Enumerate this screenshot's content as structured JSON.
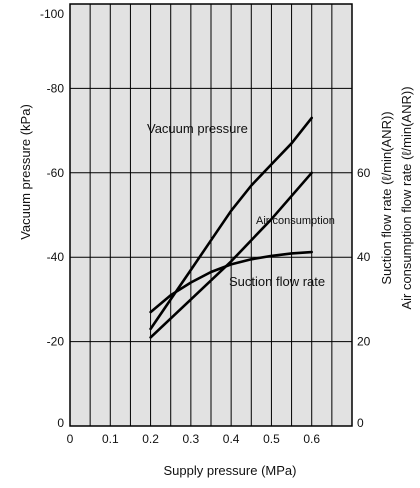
{
  "chart_data": {
    "type": "line",
    "xlabel": "Supply pressure (MPa)",
    "ylabel_left": "Vacuum pressure (kPa)",
    "ylabel_right_1": "Suction flow rate (ℓ/min(ANR))",
    "ylabel_right_2": "Air consumption flow rate (ℓ/min(ANR))",
    "xlim": [
      0,
      0.7
    ],
    "x_ticks": [
      "0",
      "0.1",
      "0.2",
      "0.3",
      "0.4",
      "0.5",
      "0.6"
    ],
    "x_tick_values": [
      0,
      0.1,
      0.2,
      0.3,
      0.4,
      0.5,
      0.6
    ],
    "ylim_left": [
      0,
      -100
    ],
    "y_left_ticks": [
      "0",
      "-20",
      "-40",
      "-60",
      "-80",
      "-100"
    ],
    "y_left_tick_values": [
      0,
      -20,
      -40,
      -60,
      -80,
      -100
    ],
    "ylim_right": [
      0,
      100
    ],
    "y_right_ticks": [
      "0",
      "20",
      "40",
      "60"
    ],
    "y_right_tick_values": [
      0,
      20,
      40,
      60
    ],
    "grid": true,
    "background": "#e2e2e2",
    "series": [
      {
        "name": "Vacuum pressure",
        "axis": "left",
        "x": [
          0.2,
          0.25,
          0.3,
          0.35,
          0.4,
          0.45,
          0.5,
          0.55,
          0.6
        ],
        "y": [
          -23,
          -30,
          -37,
          -44,
          -51,
          -57,
          -62,
          -67,
          -73
        ]
      },
      {
        "name": "Air consumption",
        "axis": "right",
        "x": [
          0.2,
          0.3,
          0.4,
          0.5,
          0.6
        ],
        "y": [
          21,
          30,
          39,
          49,
          60
        ]
      },
      {
        "name": "Suction flow rate",
        "axis": "right",
        "x": [
          0.2,
          0.25,
          0.3,
          0.35,
          0.4,
          0.45,
          0.5,
          0.55,
          0.6
        ],
        "y": [
          27,
          31,
          34,
          36.5,
          38.3,
          39.5,
          40.3,
          40.9,
          41.2
        ]
      }
    ]
  }
}
